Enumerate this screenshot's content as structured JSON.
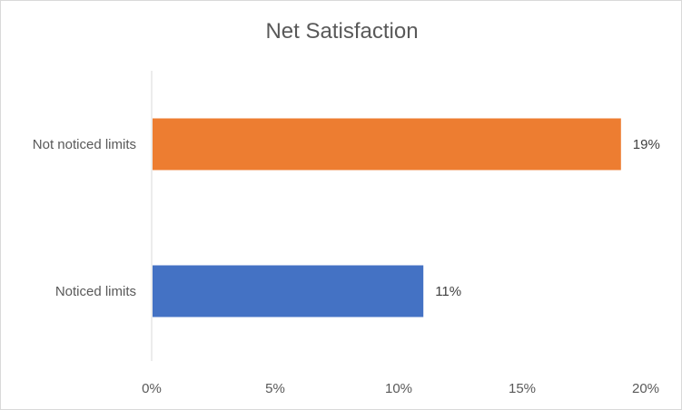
{
  "chart_data": {
    "type": "bar",
    "orientation": "horizontal",
    "title": "Net Satisfaction",
    "categories": [
      "Not noticed limits",
      "Noticed limits"
    ],
    "values": [
      0.19,
      0.11
    ],
    "data_labels": [
      "19%",
      "11%"
    ],
    "colors": [
      "#ED7D31",
      "#4472C4"
    ],
    "xlim": [
      0,
      0.2
    ],
    "x_ticks": [
      0,
      0.05,
      0.1,
      0.15,
      0.2
    ],
    "x_tick_labels": [
      "0%",
      "5%",
      "10%",
      "15%",
      "20%"
    ],
    "grid": false,
    "legend": "none"
  }
}
